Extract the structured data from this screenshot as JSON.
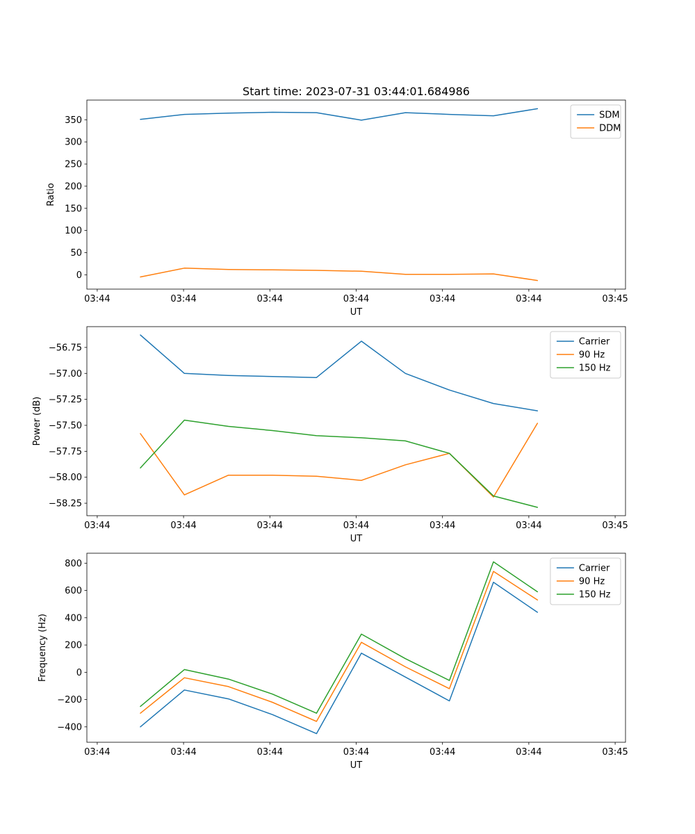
{
  "figure": {
    "background": "#ffffff",
    "text_color": "#000000",
    "accent_colors": {
      "blue": "#1f77b4",
      "orange": "#ff7f0e",
      "green": "#2ca02c"
    }
  },
  "chart_data": [
    {
      "id": "ratio",
      "type": "line",
      "title": "Start time: 2023-07-31 03:44:01.684986",
      "xlabel": "UT",
      "ylabel": "Ratio",
      "legend_position": "upper right",
      "grid": false,
      "x_seconds": [
        5.0,
        10.1,
        15.2,
        20.3,
        25.4,
        30.6,
        35.7,
        40.8,
        45.9,
        51.0
      ],
      "xlim": [
        -1.2,
        61.2
      ],
      "xticks": [
        0,
        10,
        20,
        30,
        40,
        50,
        60
      ],
      "xtick_labels": [
        "03:44",
        "03:44",
        "03:44",
        "03:44",
        "03:44",
        "03:44",
        "03:45"
      ],
      "ylim": [
        -32.4,
        394.4
      ],
      "yticks": [
        0,
        50,
        100,
        150,
        200,
        250,
        300,
        350
      ],
      "ytick_labels": [
        "0",
        "50",
        "100",
        "150",
        "200",
        "250",
        "300",
        "350"
      ],
      "series": [
        {
          "name": "SDM",
          "color": "#1f77b4",
          "values": [
            351,
            362,
            365,
            367,
            366,
            349,
            366,
            362,
            359,
            375
          ]
        },
        {
          "name": "DDM",
          "color": "#ff7f0e",
          "values": [
            -5,
            15,
            12,
            11,
            10,
            8,
            1,
            1,
            2,
            -13
          ]
        }
      ]
    },
    {
      "id": "power",
      "type": "line",
      "title": "",
      "xlabel": "UT",
      "ylabel": "Power (dB)",
      "legend_position": "upper right",
      "grid": false,
      "x_seconds": [
        5.0,
        10.1,
        15.2,
        20.3,
        25.4,
        30.6,
        35.7,
        40.8,
        45.9,
        51.0
      ],
      "xlim": [
        -1.2,
        61.2
      ],
      "xticks": [
        0,
        10,
        20,
        30,
        40,
        50,
        60
      ],
      "xtick_labels": [
        "03:44",
        "03:44",
        "03:44",
        "03:44",
        "03:44",
        "03:44",
        "03:45"
      ],
      "ylim": [
        -58.37,
        -56.55
      ],
      "yticks": [
        -56.75,
        -57.0,
        -57.25,
        -57.5,
        -57.75,
        -58.0,
        -58.25
      ],
      "ytick_labels": [
        "−56.75",
        "−57.00",
        "−57.25",
        "−57.50",
        "−57.75",
        "−58.00",
        "−58.25"
      ],
      "series": [
        {
          "name": "Carrier",
          "color": "#1f77b4",
          "values": [
            -56.63,
            -57.0,
            -57.02,
            -57.03,
            -57.04,
            -56.69,
            -57.0,
            -57.16,
            -57.29,
            -57.36
          ]
        },
        {
          "name": "90 Hz",
          "color": "#ff7f0e",
          "values": [
            -57.58,
            -58.17,
            -57.98,
            -57.98,
            -57.99,
            -58.03,
            -57.88,
            -57.77,
            -58.19,
            -57.48
          ]
        },
        {
          "name": "150 Hz",
          "color": "#2ca02c",
          "values": [
            -57.91,
            -57.45,
            -57.51,
            -57.55,
            -57.6,
            -57.62,
            -57.65,
            -57.77,
            -58.18,
            -58.29
          ]
        }
      ]
    },
    {
      "id": "frequency",
      "type": "line",
      "title": "",
      "xlabel": "UT",
      "ylabel": "Frequency (Hz)",
      "legend_position": "upper right",
      "grid": false,
      "x_seconds": [
        5.0,
        10.1,
        15.2,
        20.3,
        25.4,
        30.6,
        35.7,
        40.8,
        45.9,
        51.0
      ],
      "xlim": [
        -1.2,
        61.2
      ],
      "xticks": [
        0,
        10,
        20,
        30,
        40,
        50,
        60
      ],
      "xtick_labels": [
        "03:44",
        "03:44",
        "03:44",
        "03:44",
        "03:44",
        "03:44",
        "03:45"
      ],
      "ylim": [
        -513,
        873
      ],
      "yticks": [
        -400,
        -200,
        0,
        200,
        400,
        600,
        800
      ],
      "ytick_labels": [
        "−400",
        "−200",
        "0",
        "200",
        "400",
        "600",
        "800"
      ],
      "series": [
        {
          "name": "Carrier",
          "color": "#1f77b4",
          "values": [
            -400,
            -130,
            -195,
            -310,
            -450,
            140,
            -35,
            -210,
            660,
            440
          ]
        },
        {
          "name": "90 Hz",
          "color": "#ff7f0e",
          "values": [
            -300,
            -40,
            -105,
            -220,
            -360,
            220,
            40,
            -120,
            740,
            530
          ]
        },
        {
          "name": "150 Hz",
          "color": "#2ca02c",
          "values": [
            -250,
            20,
            -50,
            -160,
            -300,
            280,
            100,
            -60,
            810,
            590
          ]
        }
      ]
    }
  ]
}
